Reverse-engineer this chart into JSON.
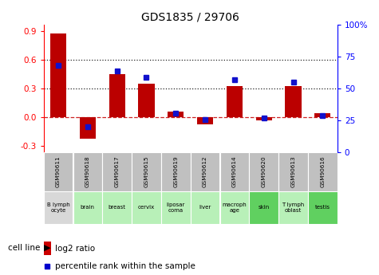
{
  "title": "GDS1835 / 29706",
  "samples": [
    "GSM90611",
    "GSM90618",
    "GSM90617",
    "GSM90615",
    "GSM90619",
    "GSM90612",
    "GSM90614",
    "GSM90620",
    "GSM90613",
    "GSM90616"
  ],
  "cell_line_colors": [
    "#d8d8d8",
    "#b8f0b8",
    "#b8f0b8",
    "#b8f0b8",
    "#b8f0b8",
    "#b8f0b8",
    "#b8f0b8",
    "#60d060",
    "#b8f0b8",
    "#60d060"
  ],
  "cell_texts": [
    "B lymph\nocyte",
    "brain",
    "breast",
    "cervix",
    "liposar\ncoma",
    "liver",
    "macroph\nage",
    "skin",
    "T lymph\noblast",
    "testis"
  ],
  "log2_ratio": [
    0.88,
    -0.22,
    0.45,
    0.35,
    0.06,
    -0.07,
    0.33,
    -0.03,
    0.33,
    0.04
  ],
  "percentile_rank": [
    68,
    20,
    64,
    59,
    31,
    26,
    57,
    27,
    55,
    29
  ],
  "bar_color": "#bb0000",
  "dot_color": "#1111cc",
  "bar_width": 0.55,
  "ylim_left": [
    -0.37,
    0.97
  ],
  "ylim_right": [
    0,
    100
  ],
  "yticks_left": [
    -0.3,
    0.0,
    0.3,
    0.6,
    0.9
  ],
  "yticks_right": [
    0,
    25,
    50,
    75,
    100
  ],
  "hlines": [
    0.0,
    0.3,
    0.6
  ],
  "hline_styles": [
    "dashed",
    "dotted",
    "dotted"
  ],
  "hline_colors": [
    "#cc2222",
    "#222222",
    "#222222"
  ],
  "sample_box_color": "#c0c0c0",
  "legend_log2_color": "#cc0000",
  "legend_pct_color": "#0000cc"
}
